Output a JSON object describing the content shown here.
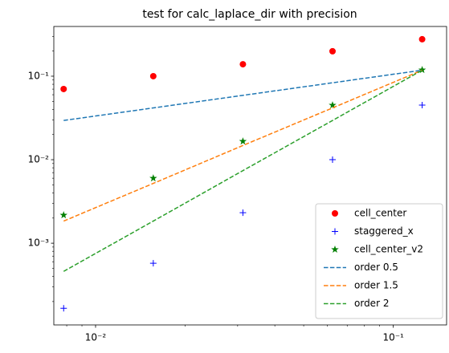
{
  "chart_data": {
    "type": "line",
    "title": "test for calc_laplace_dir with precision",
    "x": [
      0.0078125,
      0.015625,
      0.03125,
      0.0625,
      0.125
    ],
    "series": [
      {
        "name": "cell_center",
        "color": "#ff0000",
        "marker": "o",
        "values": [
          0.0702,
          0.1,
          0.139,
          0.199,
          0.277
        ]
      },
      {
        "name": "staggered_x",
        "color": "#0000ff",
        "marker": "+",
        "values": [
          0.000166,
          0.000575,
          0.00232,
          0.01,
          0.0451
        ]
      },
      {
        "name": "cell_center_v2",
        "color": "#008000",
        "marker": "*",
        "values": [
          0.00217,
          0.006,
          0.0166,
          0.045,
          0.119
        ]
      },
      {
        "name": "order 0.5",
        "color": "#1f77b4",
        "linestyle": "--",
        "values": [
          0.0295,
          0.0417,
          0.059,
          0.0834,
          0.118
        ]
      },
      {
        "name": "order 1.5",
        "color": "#ff7f0e",
        "linestyle": "--",
        "values": [
          0.00184,
          0.0052,
          0.0148,
          0.0417,
          0.118
        ]
      },
      {
        "name": "order 2",
        "color": "#2ca02c",
        "linestyle": "--",
        "values": [
          0.00046,
          0.00184,
          0.0074,
          0.0295,
          0.118
        ]
      }
    ],
    "xscale": "log",
    "yscale": "log",
    "xlim": [
      0.00724,
      0.151
    ],
    "ylim": [
      0.000105,
      0.394
    ],
    "xticks": [
      {
        "value": 0.01,
        "label": "10⁻²"
      },
      {
        "value": 0.1,
        "label": "10⁻¹"
      }
    ],
    "yticks": [
      {
        "value": 0.001,
        "label": "10⁻³"
      },
      {
        "value": 0.01,
        "label": "10⁻²"
      },
      {
        "value": 0.1,
        "label": "10⁻¹"
      }
    ],
    "xminorticks": [
      0.008,
      0.009,
      0.02,
      0.03,
      0.04,
      0.05,
      0.06,
      0.07,
      0.08,
      0.09
    ],
    "yminorticks": [
      0.0002,
      0.0003,
      0.0004,
      0.0005,
      0.0006,
      0.0007,
      0.0008,
      0.0009,
      0.002,
      0.003,
      0.004,
      0.005,
      0.006,
      0.007,
      0.008,
      0.009,
      0.02,
      0.03,
      0.04,
      0.05,
      0.06,
      0.07,
      0.08,
      0.09,
      0.2,
      0.3
    ],
    "legend": "lower right",
    "grid": false
  }
}
